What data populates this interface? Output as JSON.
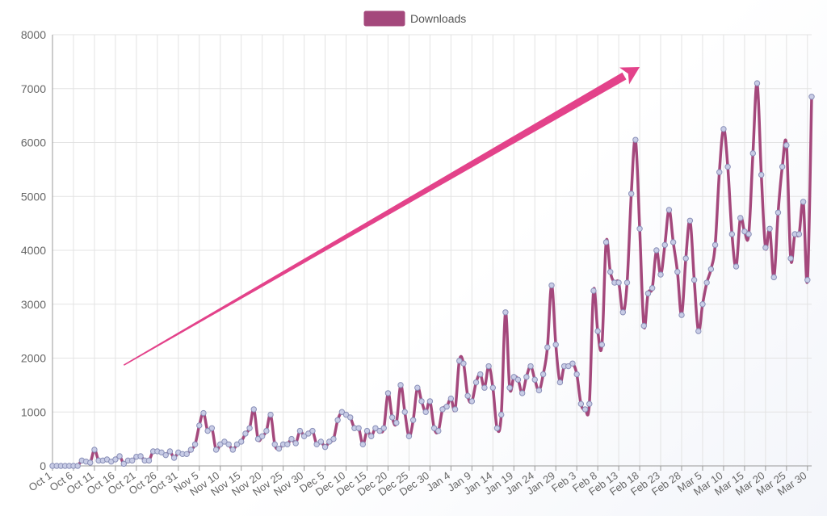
{
  "colors": {
    "series_line": "#a4487c",
    "series_fill": "#a4487c",
    "point_fill": "#c8cce6",
    "point_stroke": "#8a90b8",
    "arrow": "#e3428a",
    "grid": "#e3e3e3",
    "axis_text": "#666666"
  },
  "chart_data": {
    "type": "line",
    "title": "",
    "xlabel": "",
    "ylabel": "",
    "legend": {
      "position": "top-center",
      "entries": [
        "Downloads"
      ]
    },
    "grid": true,
    "ylim": [
      0,
      8000
    ],
    "yticks": [
      0,
      1000,
      2000,
      3000,
      4000,
      5000,
      6000,
      7000,
      8000
    ],
    "x_tick_labels": [
      "Oct 1",
      "Oct 6",
      "Oct 11",
      "Oct 16",
      "Oct 21",
      "Oct 26",
      "Oct 31",
      "Nov 5",
      "Nov 10",
      "Nov 15",
      "Nov 20",
      "Nov 25",
      "Nov 30",
      "Dec 5",
      "Dec 10",
      "Dec 15",
      "Dec 20",
      "Dec 25",
      "Dec 30",
      "Jan 4",
      "Jan 9",
      "Jan 14",
      "Jan 19",
      "Jan 24",
      "Jan 29",
      "Feb 3",
      "Feb 8",
      "Feb 13",
      "Feb 18",
      "Feb 23",
      "Feb 28",
      "Mar 5",
      "Mar 10",
      "Mar 15",
      "Mar 20",
      "Mar 25",
      "Mar 30"
    ],
    "x_start": "Oct 1",
    "x_end": "Mar 31",
    "series": [
      {
        "name": "Downloads",
        "values": [
          0,
          0,
          0,
          0,
          0,
          0,
          0,
          100,
          80,
          60,
          300,
          100,
          100,
          120,
          80,
          120,
          180,
          40,
          100,
          100,
          170,
          180,
          100,
          100,
          270,
          270,
          250,
          200,
          270,
          150,
          250,
          220,
          220,
          300,
          400,
          750,
          980,
          650,
          700,
          300,
          400,
          450,
          400,
          300,
          400,
          450,
          600,
          700,
          1050,
          500,
          550,
          650,
          950,
          400,
          320,
          400,
          400,
          500,
          420,
          650,
          550,
          600,
          650,
          400,
          450,
          350,
          450,
          500,
          850,
          1000,
          950,
          900,
          700,
          700,
          400,
          650,
          550,
          700,
          650,
          700,
          1350,
          900,
          800,
          1500,
          1000,
          550,
          850,
          1450,
          1200,
          1000,
          1200,
          700,
          650,
          1050,
          1100,
          1250,
          1050,
          1950,
          1900,
          1300,
          1200,
          1550,
          1700,
          1450,
          1850,
          1450,
          700,
          950,
          2850,
          1450,
          1650,
          1600,
          1350,
          1650,
          1850,
          1600,
          1400,
          1700,
          2200,
          3350,
          2250,
          1550,
          1850,
          1850,
          1900,
          1700,
          1150,
          1050,
          1150,
          3250,
          2500,
          2250,
          4150,
          3600,
          3400,
          3400,
          2850,
          3400,
          5050,
          6050,
          4400,
          2600,
          3200,
          3300,
          4000,
          3550,
          4100,
          4750,
          4150,
          3600,
          2800,
          3850,
          4550,
          3450,
          2500,
          3000,
          3400,
          3650,
          4100,
          5450,
          6250,
          5550,
          4300,
          3700,
          4600,
          4350,
          4300,
          5800,
          7100,
          5400,
          4050,
          4400,
          3500,
          4700,
          5550,
          5950,
          3850,
          4300,
          4300,
          4900,
          3450,
          6850
        ]
      }
    ]
  }
}
